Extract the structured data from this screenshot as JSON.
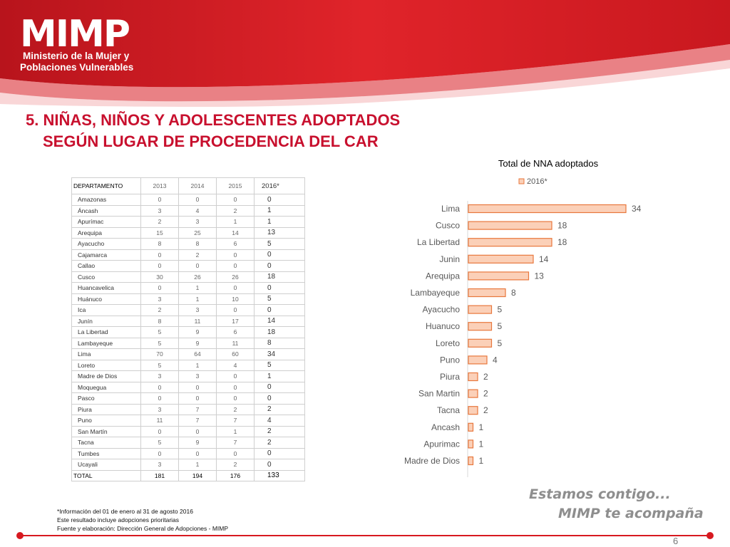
{
  "header": {
    "logo": "MIMP",
    "org_line1": "Ministerio de la Mujer y",
    "org_line2": "Poblaciones Vulnerables"
  },
  "title_line1": "5. NIÑAS, NIÑOS Y ADOLESCENTES ADOPTADOS",
  "title_line2": "SEGÚN LUGAR DE PROCEDENCIA DEL CAR",
  "table": {
    "headers": [
      "DEPARTAMENTO",
      "2013",
      "2014",
      "2015",
      "2016*"
    ],
    "rows": [
      [
        "Amazonas",
        "0",
        "0",
        "0",
        "0"
      ],
      [
        "Áncash",
        "3",
        "4",
        "2",
        "1"
      ],
      [
        "Apurímac",
        "2",
        "3",
        "1",
        "1"
      ],
      [
        "Arequipa",
        "15",
        "25",
        "14",
        "13"
      ],
      [
        "Ayacucho",
        "8",
        "8",
        "6",
        "5"
      ],
      [
        "Cajamarca",
        "0",
        "2",
        "0",
        "0"
      ],
      [
        "Callao",
        "0",
        "0",
        "0",
        "0"
      ],
      [
        "Cusco",
        "30",
        "26",
        "26",
        "18"
      ],
      [
        "Huancavelica",
        "0",
        "1",
        "0",
        "0"
      ],
      [
        "Huánuco",
        "3",
        "1",
        "10",
        "5"
      ],
      [
        "Ica",
        "2",
        "3",
        "0",
        "0"
      ],
      [
        "Junín",
        "8",
        "11",
        "17",
        "14"
      ],
      [
        "La Libertad",
        "5",
        "9",
        "6",
        "18"
      ],
      [
        "Lambayeque",
        "5",
        "9",
        "11",
        "8"
      ],
      [
        "Lima",
        "70",
        "64",
        "60",
        "34"
      ],
      [
        "Loreto",
        "5",
        "1",
        "4",
        "5"
      ],
      [
        "Madre de Dios",
        "3",
        "3",
        "0",
        "1"
      ],
      [
        "Moquegua",
        "0",
        "0",
        "0",
        "0"
      ],
      [
        "Pasco",
        "0",
        "0",
        "0",
        "0"
      ],
      [
        "Piura",
        "3",
        "7",
        "2",
        "2"
      ],
      [
        "Puno",
        "11",
        "7",
        "7",
        "4"
      ],
      [
        "San Martín",
        "0",
        "0",
        "1",
        "2"
      ],
      [
        "Tacna",
        "5",
        "9",
        "7",
        "2"
      ],
      [
        "Tumbes",
        "0",
        "0",
        "0",
        "0"
      ],
      [
        "Ucayali",
        "3",
        "1",
        "2",
        "0"
      ]
    ],
    "total": [
      "TOTAL",
      "181",
      "194",
      "176",
      "133"
    ]
  },
  "chart_data": {
    "type": "bar",
    "orientation": "horizontal",
    "title": "Total de NNA adoptados",
    "categories": [
      "Lima",
      "Cusco",
      "La Libertad",
      "Junin",
      "Arequipa",
      "Lambayeque",
      "Ayacucho",
      "Huanuco",
      "Loreto",
      "Puno",
      "Piura",
      "San Martin",
      "Tacna",
      "Ancash",
      "Apurimac",
      "Madre de Dios"
    ],
    "series": [
      {
        "name": "2016*",
        "values": [
          34,
          18,
          18,
          14,
          13,
          8,
          5,
          5,
          5,
          4,
          2,
          2,
          2,
          1,
          1,
          1
        ]
      }
    ],
    "xlim": [
      0,
      34
    ],
    "grid": false,
    "legend": "top",
    "colors": {
      "bar_fill": "#fbd0b8",
      "bar_stroke": "#e8773c",
      "text": "#595959"
    }
  },
  "notes": [
    "*Información del 01 de enero al 31 de agosto 2016",
    "Este resultado incluye adopciones prioritarias",
    "Fuente y elaboración: Dirección General de Adopciones - MIMP"
  ],
  "slogan_line1": "Estamos contigo...",
  "slogan_line2": "MIMP te acompaña",
  "page_number": "6",
  "colors": {
    "brand_red": "#d71920",
    "title_red": "#c8102e"
  }
}
